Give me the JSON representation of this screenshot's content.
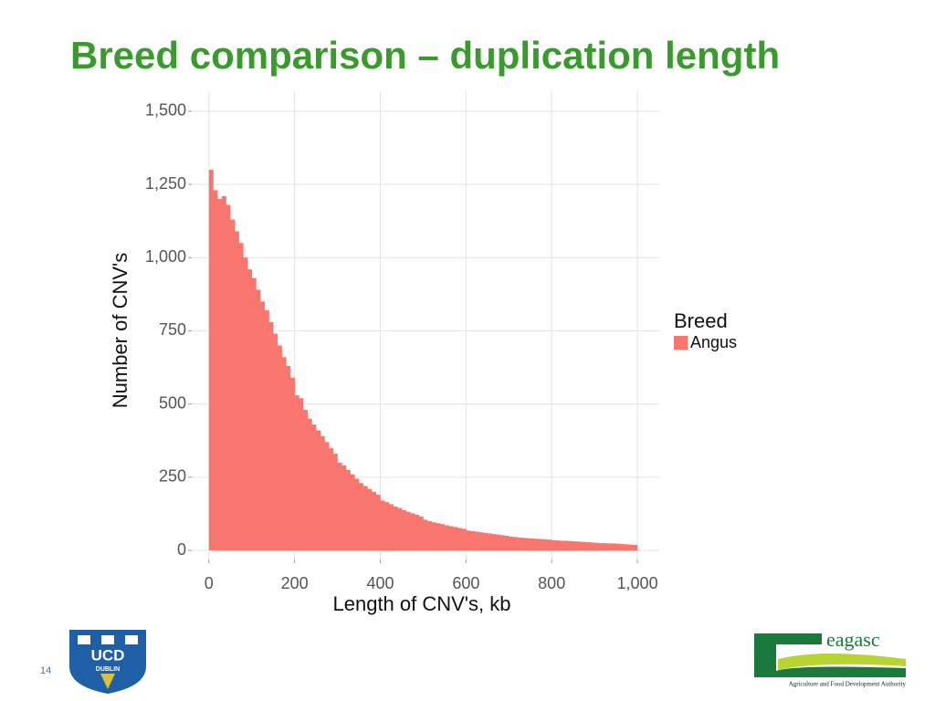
{
  "slide": {
    "title": "Breed comparison – duplication length",
    "page_number": "14",
    "left_logo": {
      "name": "UCD",
      "subtitle": "DUBLIN"
    },
    "right_logo": {
      "name": "eagasc",
      "tagline": "Agriculture and Food Development Authority"
    }
  },
  "chart_data": {
    "type": "histogram",
    "x_label": "Length of CNV's, kb",
    "y_label": "Number of CNV's",
    "legend_title": "Breed",
    "legend_position": "right",
    "bins": [
      0,
      10,
      20,
      30,
      40,
      50,
      60,
      70,
      80,
      90,
      100,
      110,
      120,
      130,
      140,
      150,
      160,
      170,
      180,
      190,
      200,
      210,
      220,
      230,
      240,
      250,
      260,
      270,
      280,
      290,
      300,
      310,
      320,
      330,
      340,
      350,
      360,
      370,
      380,
      390,
      400,
      410,
      420,
      430,
      440,
      450,
      460,
      470,
      480,
      490,
      500,
      510,
      520,
      530,
      540,
      550,
      560,
      570,
      580,
      590,
      600,
      610,
      620,
      630,
      640,
      650,
      660,
      670,
      680,
      690,
      700,
      710,
      720,
      730,
      740,
      750,
      760,
      770,
      780,
      790,
      800,
      810,
      820,
      830,
      840,
      850,
      860,
      870,
      880,
      890,
      900,
      910,
      920,
      930,
      940,
      950,
      960,
      970,
      980,
      990,
      1000
    ],
    "series": [
      {
        "name": "Angus",
        "color": "#f8766d",
        "values": [
          1300,
          1230,
          1200,
          1210,
          1180,
          1130,
          1090,
          1050,
          1000,
          960,
          930,
          890,
          850,
          820,
          780,
          740,
          700,
          660,
          630,
          590,
          530,
          520,
          480,
          450,
          430,
          410,
          390,
          370,
          350,
          330,
          300,
          290,
          275,
          260,
          245,
          230,
          220,
          210,
          200,
          190,
          170,
          165,
          158,
          150,
          145,
          138,
          132,
          127,
          122,
          116,
          105,
          100,
          96,
          93,
          90,
          86,
          83,
          80,
          77,
          74,
          68,
          66,
          64,
          62,
          60,
          58,
          56,
          54,
          52,
          50,
          47,
          46,
          44,
          43,
          42,
          41,
          40,
          39,
          38,
          37,
          35,
          34,
          33,
          33,
          32,
          31,
          30,
          29,
          28,
          27,
          26,
          25,
          25,
          24,
          24,
          23,
          22,
          21,
          20,
          19
        ]
      }
    ],
    "xlim": [
      -40,
      1051
    ],
    "ylim": [
      -31,
      1568
    ],
    "xticks": [
      0,
      200,
      400,
      600,
      800,
      {
        "value": 1000,
        "label": "1,000"
      }
    ],
    "yticks": [
      0,
      250,
      500,
      750,
      {
        "value": 1000,
        "label": "1,000"
      },
      {
        "value": 1250,
        "label": "1,250"
      },
      {
        "value": 1500,
        "label": "1,500"
      }
    ],
    "grid": true
  }
}
